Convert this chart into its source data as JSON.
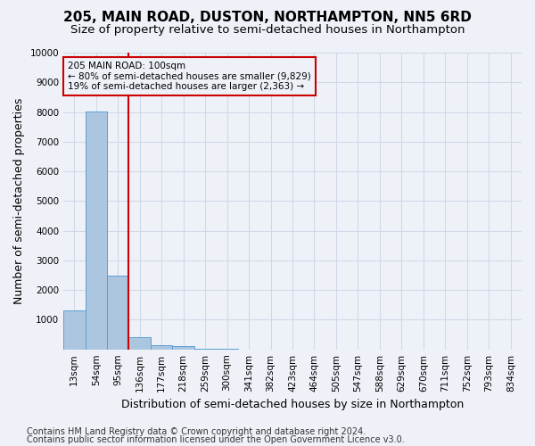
{
  "title": "205, MAIN ROAD, DUSTON, NORTHAMPTON, NN5 6RD",
  "subtitle": "Size of property relative to semi-detached houses in Northampton",
  "xlabel": "Distribution of semi-detached houses by size in Northampton",
  "ylabel": "Number of semi-detached properties",
  "footnote1": "Contains HM Land Registry data © Crown copyright and database right 2024.",
  "footnote2": "Contains public sector information licensed under the Open Government Licence v3.0.",
  "bin_labels": [
    "13sqm",
    "54sqm",
    "95sqm",
    "136sqm",
    "177sqm",
    "218sqm",
    "259sqm",
    "300sqm",
    "341sqm",
    "382sqm",
    "423sqm",
    "464sqm",
    "505sqm",
    "547sqm",
    "588sqm",
    "629sqm",
    "670sqm",
    "711sqm",
    "752sqm",
    "793sqm",
    "834sqm"
  ],
  "bar_values": [
    1320,
    8030,
    2500,
    400,
    150,
    100,
    30,
    10,
    5,
    3,
    2,
    1,
    1,
    0,
    0,
    0,
    0,
    0,
    0,
    0,
    0
  ],
  "bar_color": "#adc6e0",
  "bar_edgecolor": "#5a9fd4",
  "grid_color": "#d0d8e8",
  "background_color": "#eef2f8",
  "annotation_text": "205 MAIN ROAD: 100sqm\n← 80% of semi-detached houses are smaller (9,829)\n19% of semi-detached houses are larger (2,363) →",
  "annotation_box_edgecolor": "#cc0000",
  "vline_x": 2.5,
  "vline_color": "#cc0000",
  "ylim": [
    0,
    10000
  ],
  "yticks": [
    0,
    1000,
    2000,
    3000,
    4000,
    5000,
    6000,
    7000,
    8000,
    9000,
    10000
  ],
  "title_fontsize": 11,
  "subtitle_fontsize": 9.5,
  "axis_label_fontsize": 9,
  "tick_fontsize": 7.5,
  "footnote_fontsize": 7
}
